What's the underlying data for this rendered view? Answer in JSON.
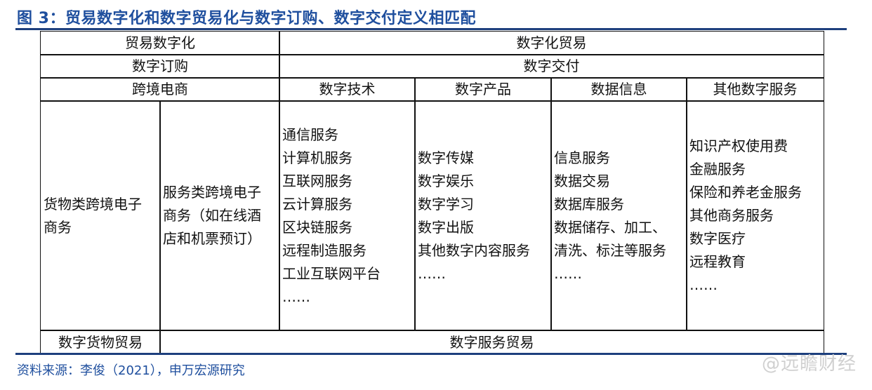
{
  "title": "图 3：贸易数字化和数字贸易化与数字订购、数字交付定义相匹配",
  "table": {
    "row1": [
      "贸易数字化",
      "数字化贸易"
    ],
    "row2": [
      "数字订购",
      "数字交付"
    ],
    "row3": [
      "跨境电商",
      "数字技术",
      "数字产品",
      "数据信息",
      "其他数字服务"
    ],
    "goods_ecommerce": [
      "货物类跨境电子",
      "商务"
    ],
    "services_ecommerce": [
      "服务类跨境电子",
      "商务（如在线酒",
      "店和机票预订）"
    ],
    "digital_tech": [
      "通信服务",
      "计算机服务",
      "互联网服务",
      "云计算服务",
      "区块链服务",
      "远程制造服务",
      "工业互联网平台",
      "……"
    ],
    "digital_products": [
      "数字传媒",
      "数字娱乐",
      "数字学习",
      "数字出版",
      "其他数字内容服务",
      "……"
    ],
    "data_info": [
      "信息服务",
      "数据交易",
      "数据库服务",
      "数据储存、加工、",
      "清洗、标注等服务",
      "……"
    ],
    "other_services": [
      "知识产权使用费",
      "金融服务",
      "保险和养老金服务",
      "其他商务服务",
      "数字医疗",
      "远程教育",
      "……"
    ],
    "last_row": [
      "数字货物贸易",
      "数字服务贸易"
    ]
  },
  "source": "资料来源：李俊（2021），申万宏源研究",
  "watermark": "@远瞻财经",
  "colors": {
    "title": "#1f4f9e",
    "rule": "#1d3f7d"
  }
}
